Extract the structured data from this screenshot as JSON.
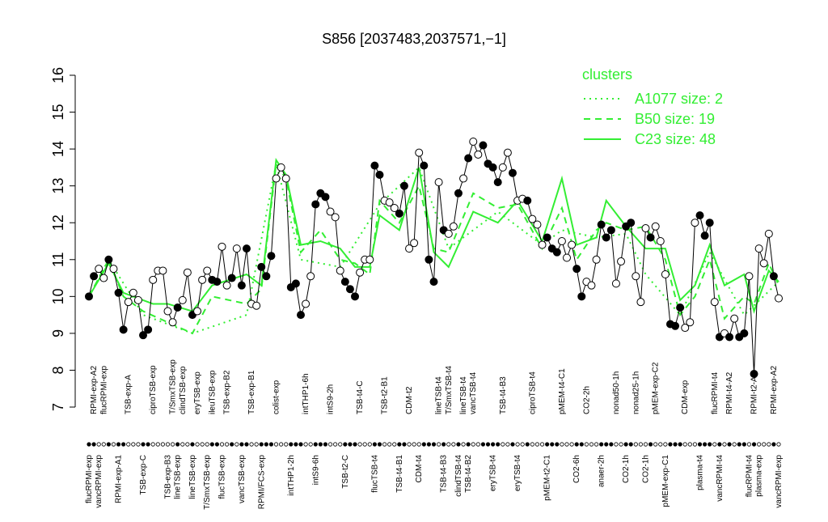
{
  "chart_data": {
    "type": "line",
    "title": "S856 [2037483,2037571,−1]",
    "ylim": [
      7,
      16
    ],
    "yticks": [
      7,
      8,
      9,
      10,
      11,
      12,
      13,
      14,
      15,
      16
    ],
    "line_color": "#000000",
    "legend_title": "clusters",
    "legend": "top-right",
    "categories": [
      "flucRPMI-exp",
      "RPMI-exp-A2",
      "vancRPMI-exp",
      "flucRPMI-exp",
      null,
      null,
      "RPMI-exp-A1",
      null,
      "TSB-exp-A",
      null,
      null,
      "TSB-exp-C",
      null,
      "ciproTSB-exp",
      null,
      null,
      "TSB-exp-B3",
      "T/SmxTSB-exp",
      "lineTSB-exp",
      "clindTSB-exp",
      null,
      "lineTSB-exp",
      "eryTSB-exp",
      null,
      "T/SmxTSB-exp",
      "ileuTSB-exp",
      null,
      "flucTSB-exp",
      "TSB-exp-B2",
      null,
      null,
      "vancTSB-exp",
      null,
      "TSB-exp-B1",
      null,
      "RPMI/FCS-exp",
      null,
      null,
      "colist-exp",
      null,
      null,
      "intTHP1-2h",
      null,
      null,
      "intTHP1-6h",
      null,
      "intS9-6h",
      null,
      null,
      "intS9-2h",
      null,
      null,
      "TSB-t2-C",
      null,
      null,
      "TSB-t4-C",
      null,
      null,
      "flucTSB-t4",
      null,
      "TSB-t2-B1",
      null,
      null,
      "TSB-t4-B1",
      null,
      "CDM-t2",
      null,
      "CDM-t4",
      null,
      null,
      null,
      "lineTSB-t4",
      "TSB-t4-B3",
      "T/SmxTSB-t4",
      null,
      "clindTSB-t4",
      "lineTSB-t4",
      "TSB-t4-B2",
      "vancTSB-t4",
      null,
      null,
      null,
      "eryTSB-t4",
      null,
      "TSB-t4-B3",
      null,
      null,
      "eryTSB-t4",
      null,
      null,
      "ciproTSB-t4",
      null,
      null,
      "pMEM-t2-C1",
      null,
      null,
      "pMEM-t4-C1",
      null,
      null,
      "CO2-6h",
      null,
      "CO2-2h",
      null,
      null,
      "anaer-2h",
      null,
      null,
      "nonad50-1h",
      null,
      "CO2-1h",
      null,
      "nonad25-1h",
      null,
      "CO2-1h",
      null,
      "pMEM-exp-C2",
      null,
      "pMEM-exp-C1",
      null,
      null,
      null,
      "CDM-exp",
      null,
      null,
      "plasma-t4",
      null,
      null,
      "flucRPMI-t4",
      "vancRPMI-t4",
      null,
      "RPMI-t4-A2",
      null,
      null,
      null,
      "flucRPMI-t4",
      "RPMI-t2-A1",
      "plasma-exp",
      null,
      null,
      "RPMI-exp-A2",
      "vancRPMI-exp"
    ],
    "values": [
      10.0,
      10.55,
      10.75,
      10.5,
      11.0,
      10.75,
      10.1,
      9.1,
      9.85,
      10.1,
      9.9,
      8.95,
      9.1,
      10.45,
      10.7,
      10.7,
      9.6,
      9.3,
      9.7,
      9.9,
      10.65,
      9.5,
      9.6,
      10.45,
      10.7,
      10.45,
      10.4,
      11.35,
      10.3,
      10.5,
      11.3,
      10.3,
      11.3,
      9.8,
      9.75,
      10.8,
      10.55,
      11.1,
      13.2,
      13.5,
      13.2,
      10.25,
      10.35,
      9.5,
      9.8,
      10.55,
      12.5,
      12.8,
      12.7,
      12.3,
      12.15,
      10.7,
      10.4,
      10.2,
      10.0,
      10.65,
      11.0,
      11.0,
      13.55,
      13.3,
      12.6,
      12.55,
      12.4,
      12.25,
      13.0,
      11.3,
      11.45,
      13.9,
      13.55,
      11.0,
      10.4,
      13.1,
      11.8,
      11.7,
      11.9,
      12.8,
      13.2,
      13.75,
      14.2,
      13.85,
      14.1,
      13.6,
      13.5,
      13.1,
      13.5,
      13.9,
      13.35,
      12.6,
      12.65,
      12.6,
      12.1,
      11.95,
      11.4,
      11.6,
      11.3,
      11.2,
      11.5,
      11.05,
      11.4,
      10.75,
      10.0,
      10.4,
      10.3,
      11.0,
      11.95,
      11.6,
      11.8,
      10.35,
      10.95,
      11.9,
      12.0,
      10.55,
      9.85,
      11.85,
      11.6,
      11.9,
      11.5,
      10.6,
      9.25,
      9.2,
      9.7,
      9.15,
      9.3,
      12.0,
      12.2,
      11.65,
      12.0,
      9.85,
      8.9,
      9.0,
      8.9,
      9.4,
      8.9,
      9.0,
      10.55,
      7.9,
      11.3,
      10.9,
      11.7,
      10.55,
      9.95
    ],
    "filled": [
      true,
      true,
      false,
      false,
      true,
      false,
      true,
      true,
      false,
      false,
      false,
      true,
      true,
      false,
      false,
      false,
      false,
      false,
      true,
      false,
      false,
      true,
      false,
      false,
      false,
      true,
      true,
      false,
      false,
      true,
      false,
      true,
      true,
      false,
      false,
      true,
      true,
      true,
      false,
      false,
      false,
      true,
      true,
      true,
      false,
      false,
      true,
      true,
      true,
      false,
      false,
      false,
      true,
      true,
      true,
      false,
      false,
      false,
      true,
      true,
      false,
      false,
      false,
      true,
      true,
      false,
      false,
      false,
      true,
      true,
      true,
      false,
      true,
      false,
      false,
      true,
      false,
      true,
      false,
      false,
      true,
      true,
      true,
      true,
      false,
      false,
      true,
      false,
      false,
      true,
      false,
      false,
      false,
      true,
      true,
      true,
      false,
      false,
      false,
      true,
      true,
      false,
      false,
      false,
      true,
      true,
      true,
      false,
      false,
      true,
      true,
      false,
      false,
      false,
      true,
      false,
      false,
      false,
      true,
      true,
      true,
      false,
      false,
      false,
      true,
      true,
      true,
      false,
      true,
      false,
      true,
      false,
      true,
      true,
      false,
      true,
      false,
      false,
      false,
      true,
      false
    ],
    "series": [
      {
        "name": "A1077 size: 2",
        "color": "#33ee33",
        "dash": "dotted",
        "x": [
          0,
          4,
          11,
          21,
          32,
          38,
          43,
          51,
          59,
          67,
          73,
          83,
          92,
          96,
          103,
          109,
          113,
          120,
          126,
          133,
          140
        ],
        "values": [
          10.0,
          11.0,
          9.5,
          9.0,
          9.5,
          13.6,
          11.0,
          10.8,
          12.5,
          13.5,
          11.3,
          12.3,
          11.4,
          11.8,
          11.6,
          11.7,
          10.6,
          9.5,
          11.2,
          9.5,
          10.4
        ]
      },
      {
        "name": "B50 size: 19",
        "color": "#33ee33",
        "dash": "dashed",
        "x": [
          0,
          4,
          7,
          11,
          16,
          21,
          25,
          32,
          35,
          38,
          40,
          43,
          47,
          51,
          54,
          57,
          59,
          63,
          67,
          70,
          73,
          78,
          83,
          87,
          92,
          96,
          99,
          103,
          105,
          109,
          113,
          117,
          120,
          123,
          126,
          129,
          133,
          135,
          138,
          140
        ],
        "values": [
          10.0,
          11.0,
          10.0,
          9.6,
          9.3,
          9.0,
          10.0,
          9.8,
          10.2,
          13.6,
          13.2,
          11.2,
          11.8,
          11.0,
          10.9,
          10.6,
          12.6,
          12.0,
          13.0,
          11.3,
          11.2,
          12.8,
          12.4,
          12.5,
          11.3,
          12.4,
          11.0,
          11.8,
          12.0,
          11.8,
          11.9,
          11.0,
          9.5,
          10.0,
          11.0,
          9.4,
          10.0,
          9.8,
          10.9,
          10.3
        ]
      },
      {
        "name": "C23 size: 48",
        "color": "#33ee33",
        "dash": "solid",
        "x": [
          0,
          4,
          7,
          11,
          13,
          16,
          21,
          25,
          32,
          35,
          38,
          40,
          43,
          47,
          51,
          54,
          57,
          59,
          63,
          67,
          70,
          73,
          78,
          83,
          87,
          92,
          96,
          99,
          103,
          105,
          109,
          113,
          117,
          120,
          123,
          126,
          129,
          133,
          135,
          138,
          140
        ],
        "values": [
          10.0,
          10.9,
          10.1,
          9.9,
          9.8,
          9.8,
          9.6,
          10.3,
          10.6,
          10.3,
          13.7,
          13.3,
          11.4,
          11.5,
          11.3,
          10.8,
          10.8,
          12.2,
          11.8,
          13.5,
          11.2,
          10.8,
          12.3,
          12.0,
          12.6,
          11.5,
          13.2,
          11.4,
          11.6,
          12.6,
          11.9,
          11.3,
          11.3,
          9.9,
          10.3,
          11.4,
          10.3,
          10.6,
          9.6,
          10.7,
          10.4
        ]
      }
    ]
  }
}
